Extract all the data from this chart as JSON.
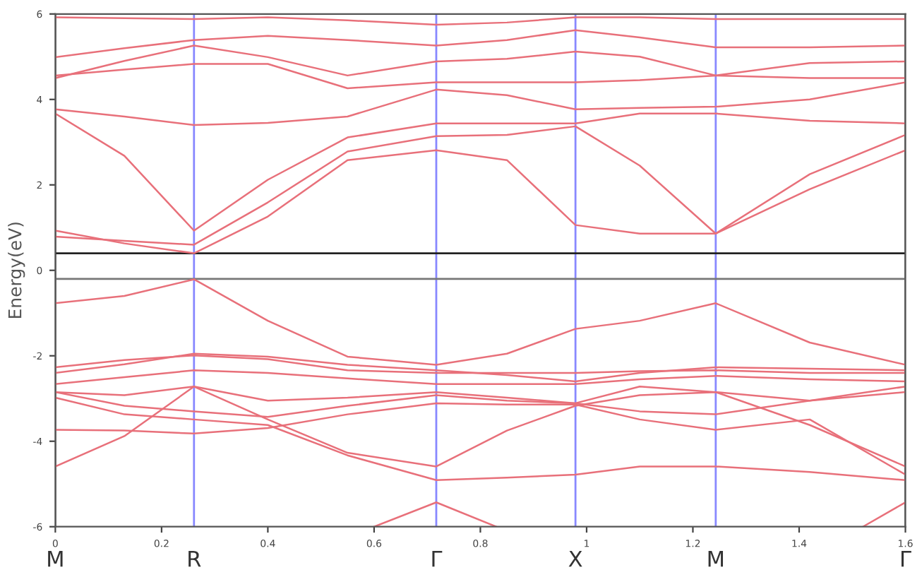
{
  "chart_data": {
    "type": "line",
    "ylabel": "Energy(eV)",
    "xlim": [
      0,
      1.6
    ],
    "xticks": [
      0,
      0.2,
      0.4,
      0.6,
      0.8,
      1,
      1.2,
      1.4,
      1.6
    ],
    "ylim": [
      -6,
      6
    ],
    "yticks": [
      -6,
      -4,
      -2,
      0,
      2,
      4,
      6
    ],
    "grid": false,
    "marker": "none",
    "line_style": "solid",
    "x": [
      0,
      0.13,
      0.261,
      0.4,
      0.55,
      0.717,
      0.85,
      0.979,
      1.1,
      1.243,
      1.42,
      1.6
    ],
    "series": [
      {
        "color": "#e8707a",
        "values": [
          0.93,
          0.63,
          0.4,
          1.26,
          2.58,
          2.81,
          2.58,
          1.06,
          0.86,
          0.86,
          1.9,
          2.81
        ]
      },
      {
        "color": "#e8707a",
        "values": [
          0.79,
          0.69,
          0.6,
          1.59,
          2.78,
          3.14,
          3.17,
          3.37,
          2.45,
          0.86,
          2.25,
          3.17
        ]
      },
      {
        "color": "#e8707a",
        "values": [
          3.67,
          2.68,
          0.93,
          2.12,
          3.11,
          3.44,
          3.44,
          3.44,
          3.67,
          3.67,
          3.5,
          3.44
        ]
      },
      {
        "color": "#e8707a",
        "values": [
          3.77,
          3.6,
          3.4,
          3.45,
          3.6,
          4.23,
          4.1,
          3.77,
          3.8,
          3.83,
          4.0,
          4.4
        ]
      },
      {
        "color": "#e8707a",
        "values": [
          4.56,
          4.7,
          4.83,
          4.83,
          4.26,
          4.4,
          4.4,
          4.4,
          4.45,
          4.56,
          4.5,
          4.5
        ]
      },
      {
        "color": "#e8707a",
        "values": [
          4.5,
          4.9,
          5.26,
          4.99,
          4.56,
          4.89,
          4.95,
          5.12,
          5.0,
          4.56,
          4.85,
          4.89
        ]
      },
      {
        "color": "#e8707a",
        "values": [
          4.99,
          5.2,
          5.39,
          5.49,
          5.39,
          5.26,
          5.39,
          5.62,
          5.45,
          5.22,
          5.22,
          5.26
        ]
      },
      {
        "color": "#e8707a",
        "values": [
          5.92,
          5.9,
          5.88,
          5.92,
          5.85,
          5.75,
          5.8,
          5.92,
          5.92,
          5.88,
          5.88,
          5.88
        ]
      },
      {
        "color": "#e8707a",
        "values": [
          -0.77,
          -0.6,
          -0.21,
          -1.18,
          -2.02,
          -2.21,
          -1.95,
          -1.37,
          -1.18,
          -0.77,
          -1.69,
          -2.21
        ]
      },
      {
        "color": "#e8707a",
        "values": [
          -2.4,
          -2.2,
          -1.95,
          -2.02,
          -2.21,
          -2.34,
          -2.45,
          -2.6,
          -2.4,
          -2.27,
          -2.3,
          -2.34
        ]
      },
      {
        "color": "#e8707a",
        "values": [
          -2.27,
          -2.1,
          -1.99,
          -2.08,
          -2.34,
          -2.4,
          -2.4,
          -2.4,
          -2.36,
          -2.34,
          -2.4,
          -2.4
        ]
      },
      {
        "color": "#e8707a",
        "values": [
          -2.66,
          -2.5,
          -2.34,
          -2.4,
          -2.53,
          -2.66,
          -2.66,
          -2.66,
          -2.55,
          -2.47,
          -2.55,
          -2.6
        ]
      },
      {
        "color": "#e8707a",
        "values": [
          -2.85,
          -2.92,
          -2.72,
          -3.05,
          -2.98,
          -2.85,
          -2.98,
          -3.11,
          -2.72,
          -2.85,
          -3.05,
          -2.85
        ]
      },
      {
        "color": "#e8707a",
        "values": [
          -2.85,
          -3.17,
          -3.3,
          -3.43,
          -3.17,
          -2.92,
          -3.05,
          -3.11,
          -3.3,
          -3.37,
          -3.05,
          -2.72
        ]
      },
      {
        "color": "#e8707a",
        "values": [
          -4.59,
          -3.88,
          -2.72,
          -3.49,
          -4.27,
          -4.59,
          -3.75,
          -3.17,
          -2.92,
          -2.85,
          -3.62,
          -4.59
        ]
      },
      {
        "color": "#e8707a",
        "values": [
          -2.98,
          -3.37,
          -3.49,
          -3.62,
          -4.33,
          -4.91,
          -4.85,
          -4.78,
          -4.59,
          -4.59,
          -4.72,
          -4.91
        ]
      },
      {
        "color": "#e8707a",
        "values": [
          -3.73,
          -3.75,
          -3.82,
          -3.69,
          -3.37,
          -3.11,
          -3.14,
          -3.14,
          -3.49,
          -3.73,
          -3.49,
          -4.78
        ]
      },
      {
        "color": "#e8707a",
        "x": [
          0.6,
          0.717,
          0.83
        ],
        "values": [
          -6,
          -5.43,
          -6
        ]
      },
      {
        "color": "#e8707a",
        "x": [
          1.52,
          1.6
        ],
        "values": [
          -6,
          -5.43
        ]
      }
    ],
    "ref_lines": [
      {
        "axis": "x",
        "value": 0,
        "label": "M",
        "color": "#555555"
      },
      {
        "axis": "x",
        "value": 0.261,
        "label": "R",
        "color": "#8888ff"
      },
      {
        "axis": "x",
        "value": 0.717,
        "label": "Γ",
        "color": "#8888ff"
      },
      {
        "axis": "x",
        "value": 0.979,
        "label": "X",
        "color": "#8888ff"
      },
      {
        "axis": "x",
        "value": 1.243,
        "label": "M",
        "color": "#8888ff"
      },
      {
        "axis": "x",
        "value": 1.6,
        "label": "Γ",
        "color": "#555555"
      },
      {
        "axis": "y",
        "value": 0.4,
        "color": "#222222"
      },
      {
        "axis": "y",
        "value": -0.2,
        "color": "#777777"
      }
    ]
  }
}
